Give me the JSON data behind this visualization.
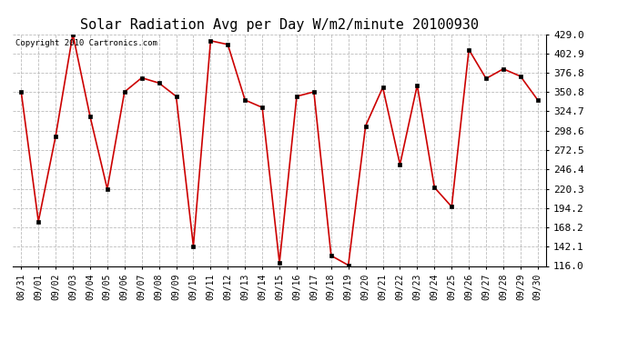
{
  "title": "Solar Radiation Avg per Day W/m2/minute 20100930",
  "copyright": "Copyright 2010 Cartronics.com",
  "labels": [
    "08/31",
    "09/01",
    "09/02",
    "09/03",
    "09/04",
    "09/05",
    "09/06",
    "09/07",
    "09/08",
    "09/09",
    "09/10",
    "09/11",
    "09/12",
    "09/13",
    "09/14",
    "09/15",
    "09/16",
    "09/17",
    "09/18",
    "09/19",
    "09/20",
    "09/21",
    "09/22",
    "09/23",
    "09/24",
    "09/25",
    "09/26",
    "09/27",
    "09/28",
    "09/29",
    "09/30"
  ],
  "values": [
    351,
    176,
    291,
    429,
    318,
    220,
    351,
    370,
    363,
    345,
    143,
    420,
    415,
    340,
    330,
    120,
    345,
    351,
    130,
    117,
    305,
    357,
    253,
    360,
    222,
    196,
    408,
    369,
    382,
    372,
    340
  ],
  "line_color": "#cc0000",
  "marker_color": "#000000",
  "bg_color": "#ffffff",
  "grid_color": "#bbbbbb",
  "title_fontsize": 11,
  "tick_fontsize": 8,
  "xlabel_fontsize": 7,
  "ymin": 116.0,
  "ymax": 429.0,
  "yticks": [
    116.0,
    142.1,
    168.2,
    194.2,
    220.3,
    246.4,
    272.5,
    298.6,
    324.7,
    350.8,
    376.8,
    402.9,
    429.0
  ]
}
